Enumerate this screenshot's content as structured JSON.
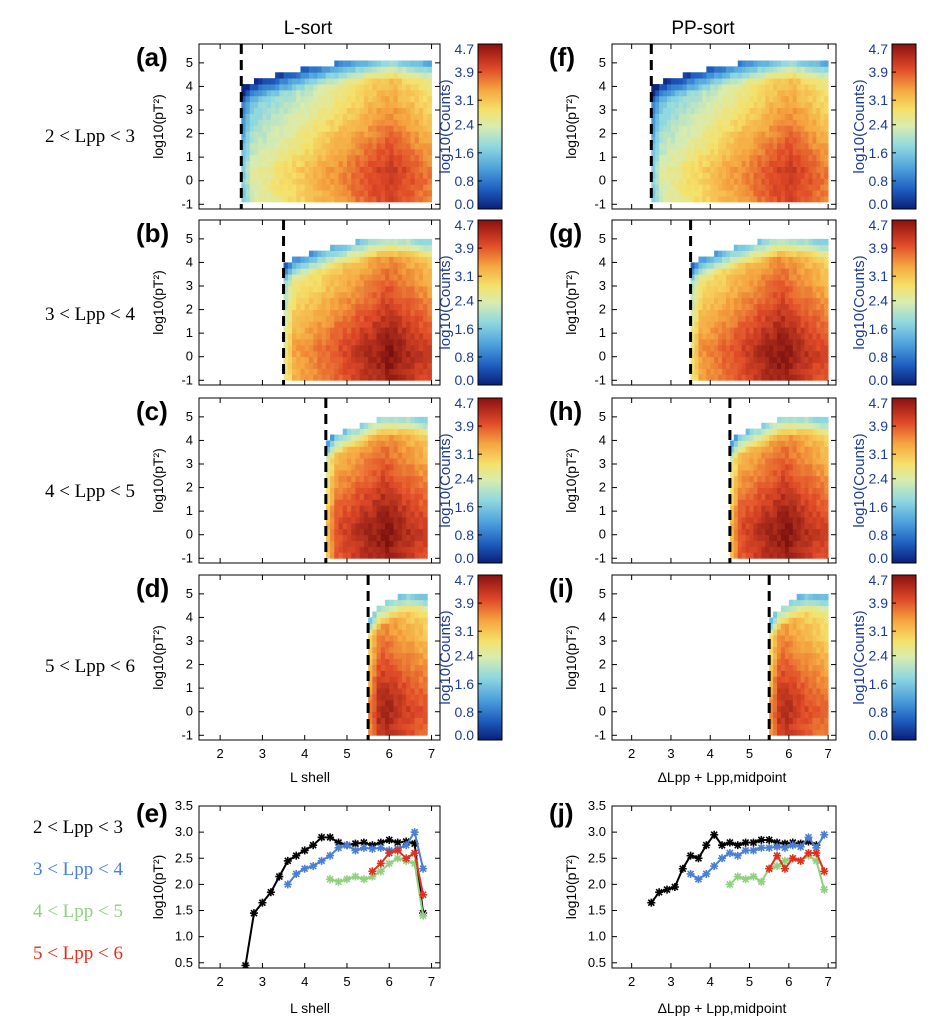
{
  "columns": {
    "left_title": "L-sort",
    "right_title": "PP-sort"
  },
  "rows": [
    {
      "label": "2 < Lpp < 3",
      "left_letter": "(a)",
      "right_letter": "(f)"
    },
    {
      "label": "3 < Lpp < 4",
      "left_letter": "(b)",
      "right_letter": "(g)"
    },
    {
      "label": "4 < Lpp < 5",
      "left_letter": "(c)",
      "right_letter": "(h)"
    },
    {
      "label": "5 < Lpp < 6",
      "left_letter": "(d)",
      "right_letter": "(i)"
    }
  ],
  "heatmap_axes": {
    "ylabel": "log10(pT²)",
    "yticks": [
      "-1",
      "0",
      "1",
      "2",
      "3",
      "4",
      "5"
    ],
    "xticks": [
      "2",
      "3",
      "4",
      "5",
      "6",
      "7"
    ],
    "left_xlabel": "L shell",
    "right_xlabel": "ΔLpp + Lpp,midpoint"
  },
  "colorbar": {
    "label": "log10(Counts)",
    "ticks": [
      "0.0",
      "0.8",
      "1.6",
      "2.4",
      "3.1",
      "3.9",
      "4.7"
    ]
  },
  "line_panels": {
    "left_letter": "(e)",
    "right_letter": "(j)",
    "ylabel": "log10(pT²)",
    "yticks": [
      "0.5",
      "1.0",
      "1.5",
      "2.0",
      "2.5",
      "3.0",
      "3.5"
    ],
    "left_xlabel": "L shell",
    "right_xlabel": "ΔLpp + Lpp,midpoint"
  },
  "legend": [
    {
      "label": "2 < Lpp < 3",
      "color": "#000000"
    },
    {
      "label": "3 < Lpp < 4",
      "color": "#4a7fd4"
    },
    {
      "label": "4 < Lpp < 5",
      "color": "#8fd17f"
    },
    {
      "label": "5 < Lpp < 6",
      "color": "#e0301e"
    }
  ],
  "chart_data": [
    {
      "type": "heatmap",
      "panel": "(a)",
      "xlabel": "",
      "ylabel": "log10(pT²)",
      "xlim": [
        1.5,
        7.2
      ],
      "ylim": [
        -1.2,
        5.8
      ],
      "colorbar_range": [
        0.0,
        4.7
      ],
      "lpp_boundary": 2.5,
      "l_range": [
        2.5,
        7.0
      ],
      "y_range": [
        -0.9,
        5.5
      ],
      "peak_L": 6.0,
      "peak_value": 4.2
    },
    {
      "type": "heatmap",
      "panel": "(b)",
      "xlabel": "",
      "ylabel": "log10(pT²)",
      "xlim": [
        1.5,
        7.2
      ],
      "ylim": [
        -1.2,
        5.8
      ],
      "colorbar_range": [
        0.0,
        4.7
      ],
      "lpp_boundary": 3.5,
      "l_range": [
        3.5,
        7.0
      ],
      "y_range": [
        -1.0,
        5.4
      ],
      "peak_L": 6.0,
      "peak_value": 4.6
    },
    {
      "type": "heatmap",
      "panel": "(c)",
      "xlabel": "",
      "ylabel": "log10(pT²)",
      "xlim": [
        1.5,
        7.2
      ],
      "ylim": [
        -1.2,
        5.8
      ],
      "colorbar_range": [
        0.0,
        4.7
      ],
      "lpp_boundary": 4.5,
      "l_range": [
        4.5,
        6.9
      ],
      "y_range": [
        -1.0,
        5.4
      ],
      "peak_L": 5.9,
      "peak_value": 4.6
    },
    {
      "type": "heatmap",
      "panel": "(d)",
      "xlabel": "L shell",
      "ylabel": "log10(pT²)",
      "xlim": [
        1.5,
        7.2
      ],
      "ylim": [
        -1.2,
        5.8
      ],
      "colorbar_range": [
        0.0,
        4.7
      ],
      "lpp_boundary": 5.5,
      "l_range": [
        5.5,
        6.9
      ],
      "y_range": [
        -1.0,
        5.4
      ],
      "peak_L": 5.9,
      "peak_value": 4.4
    },
    {
      "type": "heatmap",
      "panel": "(f)",
      "xlabel": "",
      "ylabel": "log10(pT²)",
      "xlim": [
        1.5,
        7.2
      ],
      "ylim": [
        -1.2,
        5.8
      ],
      "colorbar_range": [
        0.0,
        4.7
      ],
      "lpp_boundary": 2.5,
      "l_range": [
        2.5,
        7.0
      ],
      "y_range": [
        -0.9,
        5.5
      ],
      "peak_L": 6.0,
      "peak_value": 4.2
    },
    {
      "type": "heatmap",
      "panel": "(g)",
      "xlabel": "",
      "ylabel": "log10(pT²)",
      "xlim": [
        1.5,
        7.2
      ],
      "ylim": [
        -1.2,
        5.8
      ],
      "colorbar_range": [
        0.0,
        4.7
      ],
      "lpp_boundary": 3.5,
      "l_range": [
        3.5,
        7.0
      ],
      "y_range": [
        -1.0,
        5.4
      ],
      "peak_L": 5.8,
      "peak_value": 4.6
    },
    {
      "type": "heatmap",
      "panel": "(h)",
      "xlabel": "",
      "ylabel": "log10(pT²)",
      "xlim": [
        1.5,
        7.2
      ],
      "ylim": [
        -1.2,
        5.8
      ],
      "colorbar_range": [
        0.0,
        4.7
      ],
      "lpp_boundary": 4.5,
      "l_range": [
        4.5,
        7.0
      ],
      "y_range": [
        -1.0,
        5.4
      ],
      "peak_L": 5.9,
      "peak_value": 4.6
    },
    {
      "type": "heatmap",
      "panel": "(i)",
      "xlabel": "ΔLpp + Lpp,midpoint",
      "ylabel": "log10(pT²)",
      "xlim": [
        1.5,
        7.2
      ],
      "ylim": [
        -1.2,
        5.8
      ],
      "colorbar_range": [
        0.0,
        4.7
      ],
      "lpp_boundary": 5.5,
      "l_range": [
        5.5,
        7.0
      ],
      "y_range": [
        -1.0,
        5.4
      ],
      "peak_L": 5.9,
      "peak_value": 4.3
    },
    {
      "type": "line",
      "panel": "(e)",
      "xlabel": "L shell",
      "ylabel": "log10(pT²)",
      "xlim": [
        1.5,
        7.2
      ],
      "ylim": [
        0.4,
        3.5
      ],
      "series": [
        {
          "color": "#000000",
          "x": [
            2.6,
            2.8,
            3.0,
            3.2,
            3.4,
            3.6,
            3.8,
            4.0,
            4.2,
            4.4,
            4.6,
            4.8,
            5.0,
            5.2,
            5.4,
            5.6,
            5.8,
            6.0,
            6.2,
            6.4,
            6.6,
            6.8
          ],
          "y": [
            0.45,
            1.45,
            1.65,
            1.85,
            2.15,
            2.45,
            2.55,
            2.65,
            2.75,
            2.9,
            2.9,
            2.8,
            2.75,
            2.78,
            2.8,
            2.75,
            2.8,
            2.85,
            2.8,
            2.82,
            2.78,
            1.45
          ]
        },
        {
          "color": "#4a7fd4",
          "x": [
            3.6,
            3.8,
            4.0,
            4.2,
            4.4,
            4.6,
            4.8,
            5.0,
            5.2,
            5.4,
            5.6,
            5.8,
            6.0,
            6.2,
            6.4,
            6.6,
            6.8
          ],
          "y": [
            2.0,
            2.2,
            2.3,
            2.35,
            2.45,
            2.55,
            2.7,
            2.75,
            2.65,
            2.7,
            2.68,
            2.7,
            2.65,
            2.68,
            2.75,
            3.0,
            2.3
          ]
        },
        {
          "color": "#8fd17f",
          "x": [
            4.6,
            4.8,
            5.0,
            5.2,
            5.4,
            5.6,
            5.8,
            6.0,
            6.2,
            6.4,
            6.6,
            6.8
          ],
          "y": [
            2.1,
            2.05,
            2.1,
            2.15,
            2.1,
            2.15,
            2.25,
            2.4,
            2.5,
            2.45,
            2.4,
            1.4
          ]
        },
        {
          "color": "#e0301e",
          "x": [
            5.6,
            5.8,
            6.0,
            6.2,
            6.4,
            6.6,
            6.8
          ],
          "y": [
            2.25,
            2.4,
            2.6,
            2.65,
            2.5,
            2.6,
            1.8
          ]
        }
      ]
    },
    {
      "type": "line",
      "panel": "(j)",
      "xlabel": "ΔLpp + Lpp,midpoint",
      "ylabel": "log10(pT²)",
      "xlim": [
        1.5,
        7.2
      ],
      "ylim": [
        0.4,
        3.5
      ],
      "series": [
        {
          "color": "#000000",
          "x": [
            2.5,
            2.7,
            2.9,
            3.1,
            3.3,
            3.5,
            3.7,
            3.9,
            4.1,
            4.3,
            4.5,
            4.7,
            4.9,
            5.1,
            5.3,
            5.5,
            5.7,
            5.9,
            6.1,
            6.3,
            6.5,
            6.7
          ],
          "y": [
            1.65,
            1.85,
            1.9,
            1.95,
            2.3,
            2.55,
            2.5,
            2.75,
            2.95,
            2.75,
            2.8,
            2.75,
            2.8,
            2.8,
            2.85,
            2.85,
            2.8,
            2.78,
            2.8,
            2.78,
            2.82,
            2.75
          ]
        },
        {
          "color": "#4a7fd4",
          "x": [
            3.5,
            3.7,
            3.9,
            4.1,
            4.3,
            4.5,
            4.7,
            4.9,
            5.1,
            5.3,
            5.5,
            5.7,
            5.9,
            6.1,
            6.3,
            6.5,
            6.7,
            6.9
          ],
          "y": [
            2.2,
            2.1,
            2.2,
            2.35,
            2.5,
            2.6,
            2.55,
            2.65,
            2.65,
            2.7,
            2.7,
            2.72,
            2.7,
            2.75,
            2.72,
            2.9,
            2.7,
            2.95
          ]
        },
        {
          "color": "#8fd17f",
          "x": [
            4.5,
            4.7,
            4.9,
            5.1,
            5.3,
            5.5,
            5.7,
            5.9,
            6.1,
            6.3,
            6.5,
            6.7,
            6.9
          ],
          "y": [
            2.0,
            2.15,
            2.1,
            2.15,
            2.05,
            2.3,
            2.35,
            2.45,
            2.5,
            2.45,
            2.55,
            2.45,
            1.9
          ]
        },
        {
          "color": "#e0301e",
          "x": [
            5.5,
            5.7,
            5.9,
            6.1,
            6.3,
            6.5,
            6.7,
            6.9
          ],
          "y": [
            2.3,
            2.55,
            2.3,
            2.5,
            2.45,
            2.6,
            2.6,
            2.25
          ]
        }
      ]
    }
  ]
}
